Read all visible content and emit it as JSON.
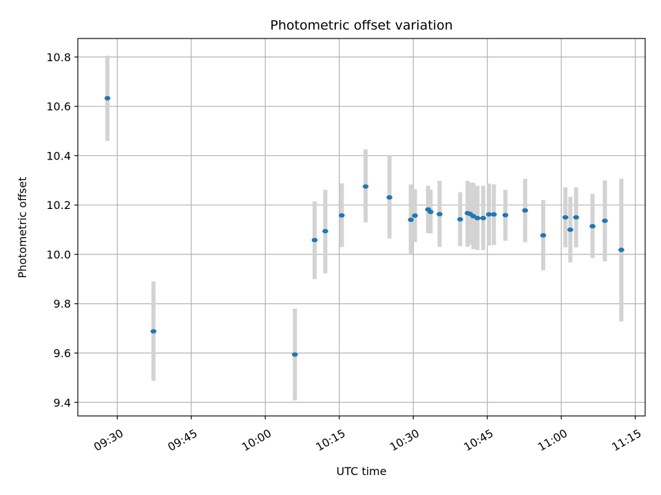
{
  "chart_data": {
    "type": "scatter",
    "title": "Photometric offset variation",
    "xlabel": "UTC time",
    "ylabel": "Photometric offset",
    "xlim": [
      "09:22",
      "11:17"
    ],
    "ylim": [
      9.345,
      10.875
    ],
    "xticks": [
      "09:30",
      "09:45",
      "10:00",
      "10:15",
      "10:30",
      "10:45",
      "11:00",
      "11:15"
    ],
    "yticks": [
      "9.4",
      "9.6",
      "9.8",
      "10.0",
      "10.2",
      "10.4",
      "10.6",
      "10.8"
    ],
    "grid": true,
    "colors": {
      "points": "#1f77b4",
      "errorbars": "#d3d3d3",
      "grid": "#b0b0b0"
    },
    "series": [
      {
        "points": [
          {
            "x": "09:28:00",
            "y": 10.633,
            "lo": 10.46,
            "hi": 10.805
          },
          {
            "x": "09:37:20",
            "y": 9.688,
            "lo": 9.487,
            "hi": 9.89
          },
          {
            "x": "10:06:00",
            "y": 9.594,
            "lo": 9.408,
            "hi": 9.78
          },
          {
            "x": "10:10:00",
            "y": 10.058,
            "lo": 9.9,
            "hi": 10.215
          },
          {
            "x": "10:12:10",
            "y": 10.094,
            "lo": 9.923,
            "hi": 10.262
          },
          {
            "x": "10:15:30",
            "y": 10.158,
            "lo": 10.03,
            "hi": 10.288
          },
          {
            "x": "10:20:20",
            "y": 10.275,
            "lo": 10.13,
            "hi": 10.425
          },
          {
            "x": "10:25:10",
            "y": 10.231,
            "lo": 10.064,
            "hi": 10.4
          },
          {
            "x": "10:29:30",
            "y": 10.14,
            "lo": 10.0,
            "hi": 10.283
          },
          {
            "x": "10:30:20",
            "y": 10.157,
            "lo": 10.05,
            "hi": 10.264
          },
          {
            "x": "10:33:00",
            "y": 10.182,
            "lo": 10.086,
            "hi": 10.278
          },
          {
            "x": "10:33:30",
            "y": 10.172,
            "lo": 10.085,
            "hi": 10.262
          },
          {
            "x": "10:35:20",
            "y": 10.163,
            "lo": 10.03,
            "hi": 10.298
          },
          {
            "x": "10:39:30",
            "y": 10.142,
            "lo": 10.033,
            "hi": 10.252
          },
          {
            "x": "10:41:00",
            "y": 10.167,
            "lo": 10.031,
            "hi": 10.298
          },
          {
            "x": "10:41:30",
            "y": 10.164,
            "lo": 10.04,
            "hi": 10.29
          },
          {
            "x": "10:42:10",
            "y": 10.155,
            "lo": 10.021,
            "hi": 10.29
          },
          {
            "x": "10:43:00",
            "y": 10.147,
            "lo": 10.018,
            "hi": 10.278
          },
          {
            "x": "10:44:10",
            "y": 10.147,
            "lo": 10.017,
            "hi": 10.278
          },
          {
            "x": "10:45:20",
            "y": 10.162,
            "lo": 10.036,
            "hi": 10.287
          },
          {
            "x": "10:46:20",
            "y": 10.162,
            "lo": 10.038,
            "hi": 10.284
          },
          {
            "x": "10:48:40",
            "y": 10.159,
            "lo": 10.055,
            "hi": 10.262
          },
          {
            "x": "10:52:40",
            "y": 10.178,
            "lo": 10.049,
            "hi": 10.306
          },
          {
            "x": "10:56:20",
            "y": 10.077,
            "lo": 9.935,
            "hi": 10.22
          },
          {
            "x": "11:00:50",
            "y": 10.15,
            "lo": 10.028,
            "hi": 10.272
          },
          {
            "x": "11:01:50",
            "y": 10.1,
            "lo": 9.967,
            "hi": 10.233
          },
          {
            "x": "11:03:00",
            "y": 10.15,
            "lo": 10.028,
            "hi": 10.272
          },
          {
            "x": "11:06:20",
            "y": 10.114,
            "lo": 9.985,
            "hi": 10.245
          },
          {
            "x": "11:08:50",
            "y": 10.136,
            "lo": 9.972,
            "hi": 10.3
          },
          {
            "x": "11:12:10",
            "y": 10.018,
            "lo": 9.728,
            "hi": 10.307
          }
        ]
      }
    ]
  }
}
